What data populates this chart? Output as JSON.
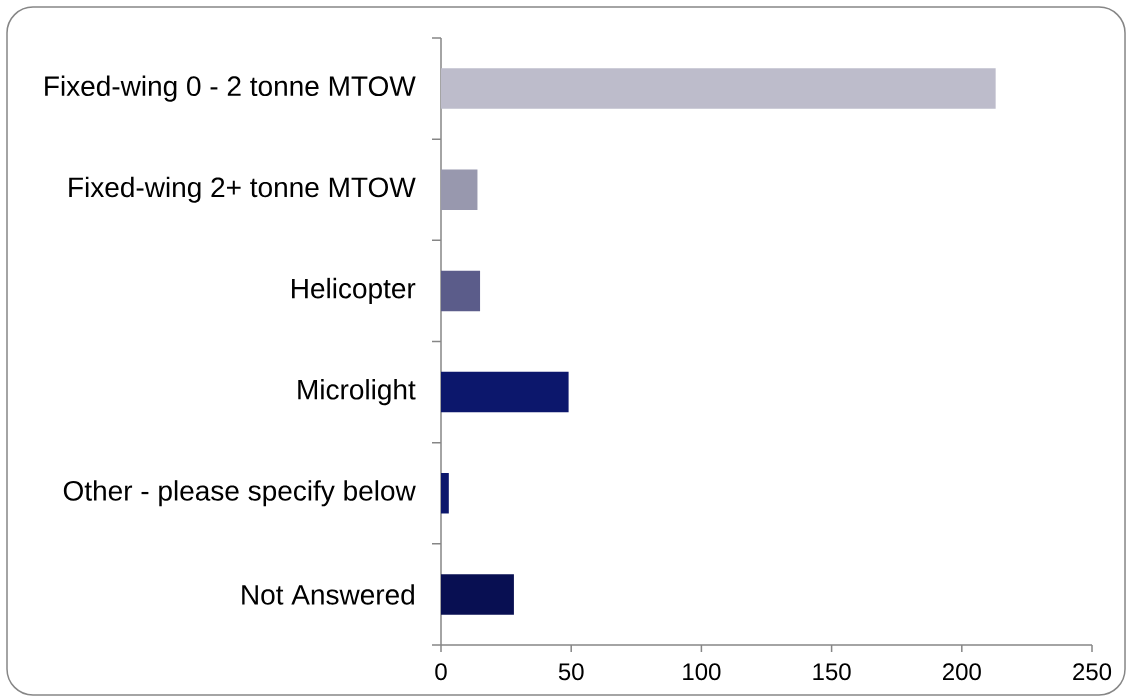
{
  "chart_data": {
    "type": "bar",
    "orientation": "horizontal",
    "categories": [
      "Fixed-wing 0 - 2 tonne MTOW",
      "Fixed-wing 2+ tonne MTOW",
      "Helicopter",
      "Microlight",
      "Other - please specify below",
      "Not Answered"
    ],
    "values": [
      213,
      14,
      15,
      49,
      3,
      28
    ],
    "colors": [
      "#bdbccb",
      "#9898ae",
      "#5b5c8a",
      "#0c176c",
      "#0c176c",
      "#080f52"
    ],
    "xlim": [
      0,
      250
    ],
    "xticks": [
      0,
      50,
      100,
      150,
      200,
      250
    ]
  }
}
